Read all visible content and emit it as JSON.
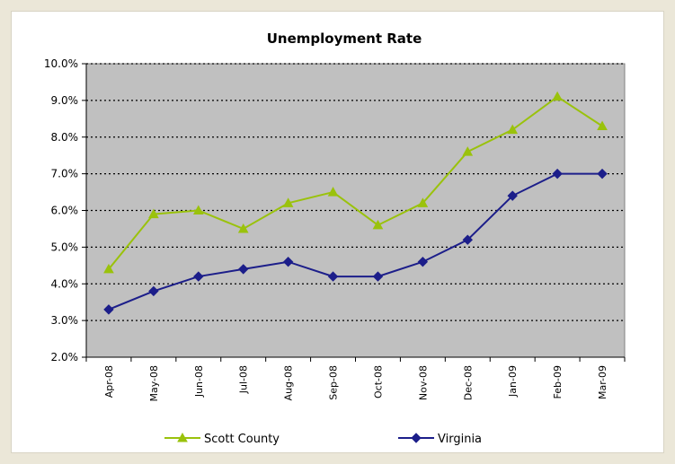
{
  "chart_data": {
    "type": "line",
    "title": "Unemployment Rate",
    "xlabel": "",
    "ylabel": "",
    "categories": [
      "Apr-08",
      "May-08",
      "Jun-08",
      "Jul-08",
      "Aug-08",
      "Sep-08",
      "Oct-08",
      "Nov-08",
      "Dec-08",
      "Jan-09",
      "Feb-09",
      "Mar-09"
    ],
    "y_ticks": [
      "2.0%",
      "3.0%",
      "4.0%",
      "5.0%",
      "6.0%",
      "7.0%",
      "8.0%",
      "9.0%",
      "10.0%"
    ],
    "ylim": [
      2.0,
      10.0
    ],
    "y_unit": "%",
    "grid": "horizontal dotted",
    "legend_position": "bottom",
    "plot_background": "#c0c0c0",
    "series": [
      {
        "name": "Scott County",
        "color": "#9ac20c",
        "marker": "triangle",
        "values": [
          4.4,
          5.9,
          6.0,
          5.5,
          6.2,
          6.5,
          5.6,
          6.2,
          7.6,
          8.2,
          9.1,
          8.3
        ]
      },
      {
        "name": "Virginia",
        "color": "#1c1e8a",
        "marker": "diamond",
        "values": [
          3.3,
          3.8,
          4.2,
          4.4,
          4.6,
          4.2,
          4.2,
          4.6,
          5.2,
          6.4,
          7.0,
          7.0
        ]
      }
    ]
  }
}
